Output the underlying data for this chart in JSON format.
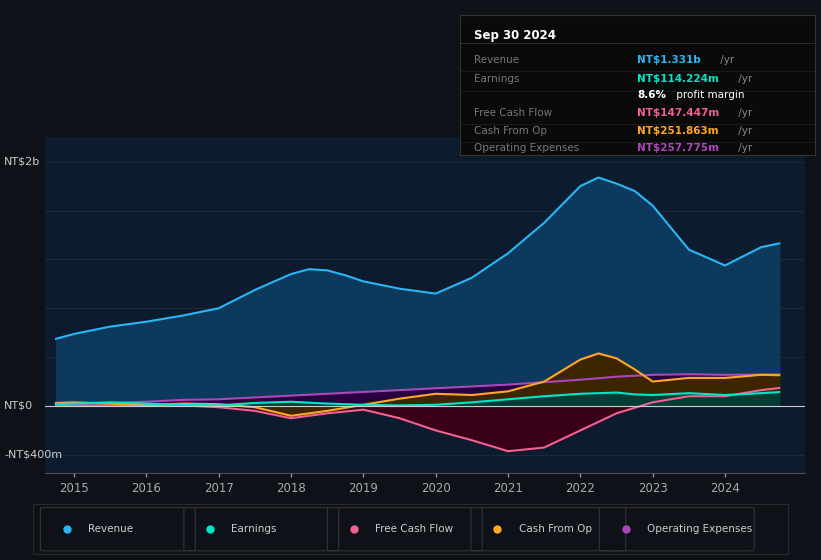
{
  "background_color": "#0e1117",
  "plot_bg_color": "#0d1b2e",
  "title": "Sep 30 2024",
  "ylabel_top": "NT$2b",
  "ylabel_zero": "NT$0",
  "ylabel_bottom": "-NT$400m",
  "x_ticks": [
    2015,
    2016,
    2017,
    2018,
    2019,
    2020,
    2021,
    2022,
    2023,
    2024
  ],
  "ylim": [
    -550000000,
    2200000000
  ],
  "xlim": [
    2014.6,
    2025.1
  ],
  "series": {
    "Revenue": {
      "color": "#29b6f6",
      "fill_color": "#0d3a5c",
      "data_x": [
        2014.75,
        2015.0,
        2015.5,
        2016.0,
        2016.5,
        2017.0,
        2017.5,
        2018.0,
        2018.25,
        2018.5,
        2018.75,
        2019.0,
        2019.5,
        2020.0,
        2020.5,
        2021.0,
        2021.5,
        2022.0,
        2022.25,
        2022.5,
        2022.75,
        2023.0,
        2023.5,
        2024.0,
        2024.5,
        2024.75
      ],
      "data_y": [
        550000000.0,
        590000000.0,
        650000000.0,
        690000000.0,
        740000000.0,
        800000000.0,
        950000000.0,
        1080000000.0,
        1120000000.0,
        1110000000.0,
        1070000000.0,
        1020000000.0,
        960000000.0,
        920000000.0,
        1050000000.0,
        1250000000.0,
        1500000000.0,
        1800000000.0,
        1870000000.0,
        1820000000.0,
        1760000000.0,
        1640000000.0,
        1280000000.0,
        1150000000.0,
        1300000000.0,
        1331000000.0
      ]
    },
    "Earnings": {
      "color": "#00e5cc",
      "fill_color": "#003d35",
      "data_x": [
        2014.75,
        2015.0,
        2015.5,
        2016.0,
        2016.5,
        2017.0,
        2017.5,
        2018.0,
        2018.5,
        2019.0,
        2019.5,
        2020.0,
        2020.5,
        2021.0,
        2021.5,
        2022.0,
        2022.5,
        2022.75,
        2023.0,
        2023.5,
        2024.0,
        2024.5,
        2024.75
      ],
      "data_y": [
        15000000.0,
        20000000.0,
        30000000.0,
        20000000.0,
        10000000.0,
        5000000.0,
        25000000.0,
        35000000.0,
        20000000.0,
        10000000.0,
        5000000.0,
        10000000.0,
        30000000.0,
        55000000.0,
        80000000.0,
        100000000.0,
        110000000.0,
        95000000.0,
        90000000.0,
        105000000.0,
        90000000.0,
        105000000.0,
        114224000.0
      ]
    },
    "FreeCashFlow": {
      "color": "#f06292",
      "fill_color": "#3a0018",
      "data_x": [
        2014.75,
        2015.0,
        2015.5,
        2016.0,
        2016.5,
        2017.0,
        2017.5,
        2018.0,
        2018.5,
        2019.0,
        2019.5,
        2020.0,
        2020.5,
        2021.0,
        2021.5,
        2022.0,
        2022.5,
        2022.75,
        2023.0,
        2023.5,
        2024.0,
        2024.5,
        2024.75
      ],
      "data_y": [
        5000000.0,
        0,
        5000000.0,
        10000000.0,
        5000000.0,
        -10000000.0,
        -40000000.0,
        -100000000.0,
        -60000000.0,
        -30000000.0,
        -100000000.0,
        -200000000.0,
        -280000000.0,
        -370000000.0,
        -340000000.0,
        -200000000.0,
        -60000000.0,
        -15000000.0,
        30000000.0,
        80000000.0,
        80000000.0,
        130000000.0,
        147447000.0
      ]
    },
    "CashFromOp": {
      "color": "#ffa726",
      "fill_color": "#3d2500",
      "data_x": [
        2014.75,
        2015.0,
        2015.5,
        2016.0,
        2016.5,
        2017.0,
        2017.5,
        2018.0,
        2018.5,
        2019.0,
        2019.5,
        2020.0,
        2020.5,
        2021.0,
        2021.5,
        2022.0,
        2022.25,
        2022.5,
        2022.75,
        2023.0,
        2023.5,
        2024.0,
        2024.5,
        2024.75
      ],
      "data_y": [
        25000000.0,
        30000000.0,
        20000000.0,
        5000000.0,
        20000000.0,
        15000000.0,
        -10000000.0,
        -80000000.0,
        -40000000.0,
        10000000.0,
        60000000.0,
        100000000.0,
        90000000.0,
        120000000.0,
        200000000.0,
        380000000.0,
        430000000.0,
        390000000.0,
        300000000.0,
        200000000.0,
        230000000.0,
        230000000.0,
        255000000.0,
        251863000.0
      ]
    },
    "OperatingExpenses": {
      "color": "#ab47bc",
      "fill_color": "#280040",
      "data_x": [
        2014.75,
        2015.0,
        2015.5,
        2016.0,
        2016.5,
        2017.0,
        2017.5,
        2018.0,
        2018.5,
        2019.0,
        2019.5,
        2020.0,
        2020.5,
        2021.0,
        2021.5,
        2022.0,
        2022.5,
        2023.0,
        2023.5,
        2024.0,
        2024.5,
        2024.75
      ],
      "data_y": [
        10000000.0,
        15000000.0,
        25000000.0,
        35000000.0,
        50000000.0,
        55000000.0,
        70000000.0,
        85000000.0,
        100000000.0,
        115000000.0,
        130000000.0,
        145000000.0,
        160000000.0,
        175000000.0,
        195000000.0,
        215000000.0,
        240000000.0,
        255000000.0,
        260000000.0,
        255000000.0,
        258000000.0,
        257775000.0
      ]
    }
  },
  "legend": [
    {
      "label": "Revenue",
      "color": "#29b6f6"
    },
    {
      "label": "Earnings",
      "color": "#00e5cc"
    },
    {
      "label": "Free Cash Flow",
      "color": "#f06292"
    },
    {
      "label": "Cash From Op",
      "color": "#ffa726"
    },
    {
      "label": "Operating Expenses",
      "color": "#ab47bc"
    }
  ],
  "gridline_color": "#1e2d3d",
  "zero_line_color": "#cccccc",
  "tooltip": {
    "title": "Sep 30 2024",
    "bg_color": "#0a0a0a",
    "border_color": "#333333",
    "rows": [
      {
        "label": "Revenue",
        "value": "NT$1.331b",
        "unit": " /yr",
        "value_color": "#29b6f6",
        "unit_color": "#888888"
      },
      {
        "label": "Earnings",
        "value": "NT$114.224m",
        "unit": " /yr",
        "value_color": "#00e5cc",
        "unit_color": "#888888"
      },
      {
        "label": "",
        "bold": "8.6%",
        "rest": " profit margin",
        "value_color": "#ffffff"
      },
      {
        "label": "Free Cash Flow",
        "value": "NT$147.447m",
        "unit": " /yr",
        "value_color": "#f06292",
        "unit_color": "#888888"
      },
      {
        "label": "Cash From Op",
        "value": "NT$251.863m",
        "unit": " /yr",
        "value_color": "#ffa726",
        "unit_color": "#888888"
      },
      {
        "label": "Operating Expenses",
        "value": "NT$257.775m",
        "unit": " /yr",
        "value_color": "#ab47bc",
        "unit_color": "#888888"
      }
    ]
  }
}
